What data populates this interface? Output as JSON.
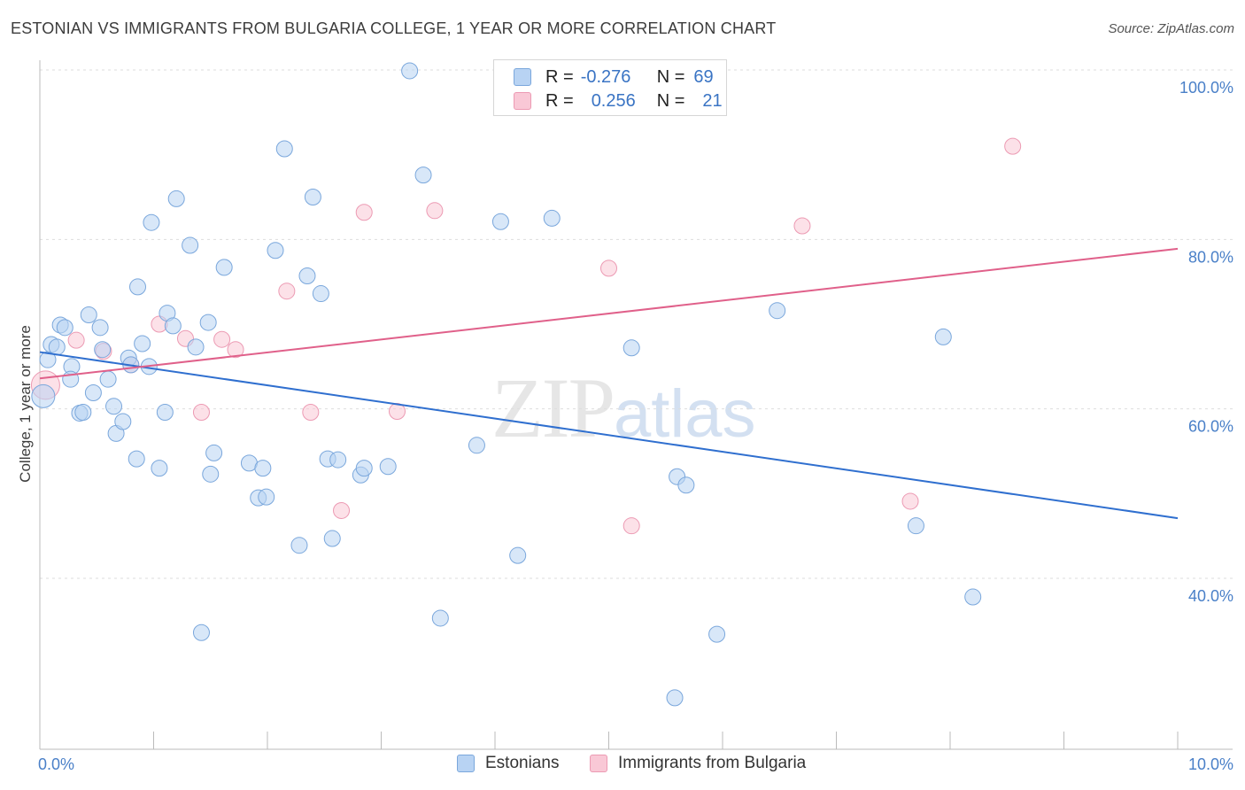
{
  "header": {
    "title": "ESTONIAN VS IMMIGRANTS FROM BULGARIA COLLEGE, 1 YEAR OR MORE CORRELATION CHART",
    "source": "Source: ZipAtlas.com"
  },
  "legend_stats": {
    "series_a": {
      "r_label": "R =",
      "r_value": "-0.276",
      "n_label": "N =",
      "n_value": "69"
    },
    "series_b": {
      "r_label": "R =",
      "r_value": "0.256",
      "n_label": "N =",
      "n_value": "21"
    }
  },
  "legend_bottom": {
    "series_a": "Estonians",
    "series_b": "Immigrants from Bulgaria"
  },
  "watermark": {
    "zip": "ZIP",
    "atlas": "atlas"
  },
  "colors": {
    "estonians_fill": "#b8d3f3",
    "estonians_stroke": "#7aa7dc",
    "estonians_line": "#2f6fcf",
    "bulgaria_fill": "#f9c8d6",
    "bulgaria_stroke": "#ec9ab3",
    "bulgaria_line": "#e0608a",
    "tick_text": "#4a80c8",
    "grid": "#dddddd"
  },
  "chart_data": {
    "type": "scatter",
    "title": "ESTONIAN VS IMMIGRANTS FROM BULGARIA COLLEGE, 1 YEAR OR MORE CORRELATION CHART",
    "xlabel": "",
    "ylabel": "College, 1 year or more",
    "xlim": [
      0,
      10
    ],
    "ylim": [
      20,
      102
    ],
    "x_tick_labels": [
      {
        "x": 0,
        "label": "0.0%"
      },
      {
        "x": 10,
        "label": "10.0%"
      }
    ],
    "y_tick_labels": [
      {
        "y": 100,
        "label": "100.0%"
      },
      {
        "y": 80,
        "label": "80.0%"
      },
      {
        "y": 60,
        "label": "60.0%"
      },
      {
        "y": 40,
        "label": "40.0%"
      }
    ],
    "x_minor_ticks": [
      0,
      1,
      2,
      3,
      4,
      5,
      6,
      7,
      8,
      9,
      10
    ],
    "grid": true,
    "legend": "top-center",
    "series": [
      {
        "name": "Estonians",
        "color": "#b8d3f3",
        "trend": {
          "x": [
            0,
            10
          ],
          "y": [
            66.7,
            47.1
          ]
        },
        "points": [
          [
            0.03,
            61.5
          ],
          [
            0.07,
            65.8
          ],
          [
            0.1,
            67.6
          ],
          [
            0.15,
            67.3
          ],
          [
            0.18,
            69.9
          ],
          [
            0.22,
            69.6
          ],
          [
            0.28,
            65.0
          ],
          [
            0.27,
            63.5
          ],
          [
            0.35,
            59.5
          ],
          [
            0.38,
            59.6
          ],
          [
            0.43,
            71.1
          ],
          [
            0.47,
            61.9
          ],
          [
            0.53,
            69.6
          ],
          [
            0.55,
            67.0
          ],
          [
            0.6,
            63.5
          ],
          [
            0.65,
            60.3
          ],
          [
            0.67,
            57.1
          ],
          [
            0.73,
            58.5
          ],
          [
            0.78,
            66.0
          ],
          [
            0.8,
            65.2
          ],
          [
            0.85,
            54.1
          ],
          [
            0.86,
            74.4
          ],
          [
            0.9,
            67.7
          ],
          [
            0.96,
            65.0
          ],
          [
            0.98,
            82.0
          ],
          [
            1.05,
            53.0
          ],
          [
            1.1,
            59.6
          ],
          [
            1.12,
            71.3
          ],
          [
            1.17,
            69.8
          ],
          [
            1.2,
            84.8
          ],
          [
            1.32,
            79.3
          ],
          [
            1.37,
            67.3
          ],
          [
            1.42,
            33.6
          ],
          [
            1.48,
            70.2
          ],
          [
            1.5,
            52.3
          ],
          [
            1.53,
            54.8
          ],
          [
            1.62,
            76.7
          ],
          [
            1.84,
            53.6
          ],
          [
            1.92,
            49.5
          ],
          [
            1.96,
            53.0
          ],
          [
            1.99,
            49.6
          ],
          [
            2.07,
            78.7
          ],
          [
            2.15,
            90.7
          ],
          [
            2.28,
            43.9
          ],
          [
            2.35,
            75.7
          ],
          [
            2.4,
            85.0
          ],
          [
            2.47,
            73.6
          ],
          [
            2.53,
            54.1
          ],
          [
            2.57,
            44.7
          ],
          [
            2.62,
            54.0
          ],
          [
            2.82,
            52.2
          ],
          [
            2.85,
            53.0
          ],
          [
            3.06,
            53.2
          ],
          [
            3.25,
            99.9
          ],
          [
            3.37,
            87.6
          ],
          [
            3.52,
            35.3
          ],
          [
            3.84,
            55.7
          ],
          [
            4.05,
            82.1
          ],
          [
            4.2,
            42.7
          ],
          [
            4.5,
            82.5
          ],
          [
            5.2,
            67.2
          ],
          [
            5.58,
            25.9
          ],
          [
            5.6,
            52.0
          ],
          [
            5.68,
            51.0
          ],
          [
            5.95,
            33.4
          ],
          [
            6.48,
            71.6
          ],
          [
            7.7,
            46.2
          ],
          [
            7.94,
            68.5
          ],
          [
            8.2,
            37.8
          ]
        ]
      },
      {
        "name": "Immigrants from Bulgaria",
        "color": "#f9c8d6",
        "trend": {
          "x": [
            0,
            10
          ],
          "y": [
            63.6,
            78.9
          ]
        },
        "points": [
          [
            0.05,
            62.8
          ],
          [
            0.32,
            68.1
          ],
          [
            0.56,
            66.8
          ],
          [
            0.8,
            65.2
          ],
          [
            1.05,
            70.0
          ],
          [
            1.28,
            68.3
          ],
          [
            1.6,
            68.2
          ],
          [
            1.72,
            67.0
          ],
          [
            2.17,
            73.9
          ],
          [
            2.38,
            59.6
          ],
          [
            2.65,
            48.0
          ],
          [
            2.85,
            83.2
          ],
          [
            3.14,
            59.7
          ],
          [
            3.47,
            83.4
          ],
          [
            5.0,
            76.6
          ],
          [
            5.2,
            46.2
          ],
          [
            5.6,
            100.0
          ],
          [
            6.7,
            81.6
          ],
          [
            7.65,
            49.1
          ],
          [
            8.55,
            91.0
          ],
          [
            1.42,
            59.6
          ]
        ]
      }
    ]
  }
}
